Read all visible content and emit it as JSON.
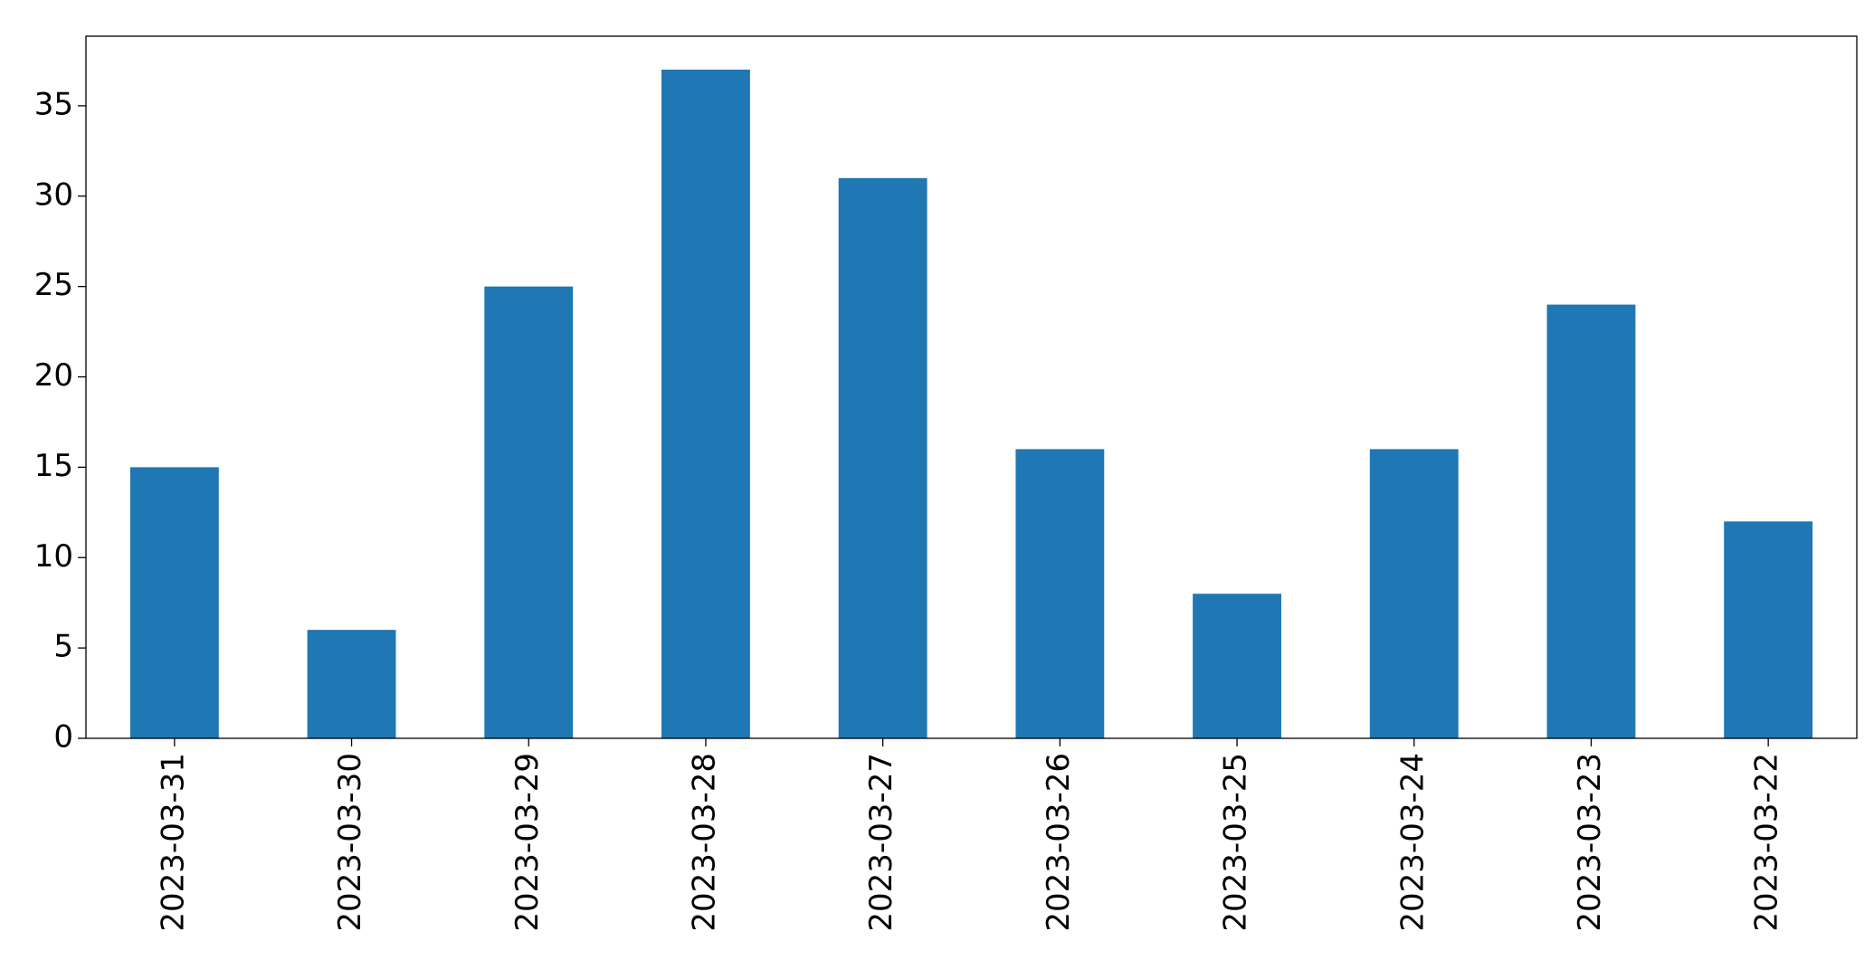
{
  "chart_data": {
    "type": "bar",
    "categories": [
      "2023-03-31",
      "2023-03-30",
      "2023-03-29",
      "2023-03-28",
      "2023-03-27",
      "2023-03-26",
      "2023-03-25",
      "2023-03-24",
      "2023-03-23",
      "2023-03-22"
    ],
    "values": [
      15,
      6,
      25,
      37,
      31,
      16,
      8,
      16,
      24,
      12
    ],
    "color": "#1f77b4",
    "ylim": [
      0,
      38.85
    ],
    "yticks": [
      0,
      5,
      10,
      15,
      20,
      25,
      30,
      35
    ],
    "grid": false
  }
}
